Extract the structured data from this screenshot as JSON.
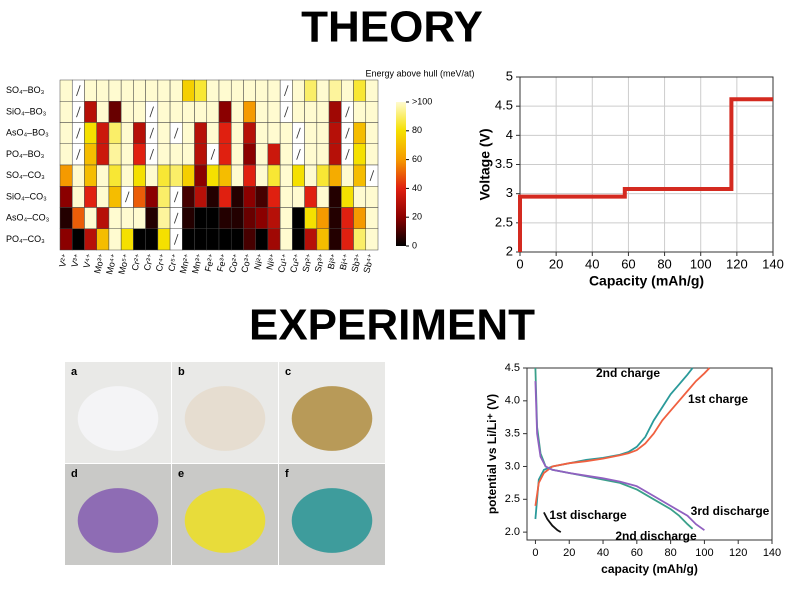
{
  "headings": {
    "theory": "THEORY",
    "experiment": "EXPERIMENT"
  },
  "chart_data": [
    {
      "type": "heatmap",
      "categories": [
        "V²⁺",
        "V³⁺",
        "V⁴⁺",
        "Mo³⁺",
        "Mo⁴⁺",
        "Mo⁵⁺",
        "Cr²⁺",
        "Cr³⁺",
        "Cr⁴⁺",
        "Cr⁵⁺",
        "Mn²⁺",
        "Mn³⁺",
        "Fe²⁺",
        "Fe³⁺",
        "Co²⁺",
        "Co³⁺",
        "Ni²⁺",
        "Ni³⁺",
        "Cu¹⁺",
        "Cu²⁺",
        "Sn²⁺",
        "Sn³⁺",
        "Bi³⁺",
        "Bi⁴⁺",
        "Sb³⁺",
        "Sb⁴⁺"
      ],
      "rows": [
        "SO₄–BO₃",
        "SiO₄–BO₃",
        "AsO₄–BO₃",
        "PO₄–BO₃",
        "SO₄–CO₃",
        "SiO₄–CO₃",
        "AsO₄–CO₃",
        "PO₄–CO₃"
      ],
      "values": [
        [
          100,
          null,
          100,
          100,
          100,
          100,
          100,
          100,
          100,
          100,
          75,
          85,
          100,
          100,
          100,
          100,
          100,
          100,
          null,
          100,
          90,
          100,
          95,
          100,
          85,
          100
        ],
        [
          100,
          null,
          30,
          100,
          15,
          100,
          100,
          null,
          100,
          100,
          100,
          100,
          100,
          20,
          100,
          60,
          100,
          100,
          null,
          100,
          100,
          100,
          25,
          null,
          100,
          100
        ],
        [
          100,
          null,
          80,
          35,
          90,
          100,
          30,
          null,
          100,
          null,
          100,
          30,
          100,
          40,
          100,
          30,
          100,
          100,
          100,
          null,
          100,
          100,
          30,
          null,
          70,
          100
        ],
        [
          100,
          null,
          70,
          35,
          95,
          100,
          40,
          null,
          100,
          100,
          100,
          30,
          null,
          40,
          100,
          20,
          100,
          35,
          100,
          null,
          100,
          100,
          30,
          null,
          80,
          100
        ],
        [
          60,
          100,
          70,
          100,
          85,
          100,
          80,
          100,
          85,
          90,
          75,
          20,
          80,
          70,
          100,
          40,
          100,
          85,
          100,
          80,
          100,
          85,
          65,
          100,
          70,
          null
        ],
        [
          20,
          100,
          40,
          100,
          70,
          null,
          50,
          20,
          90,
          null,
          10,
          30,
          5,
          40,
          5,
          20,
          10,
          40,
          100,
          100,
          40,
          100,
          5,
          80,
          100,
          100
        ],
        [
          5,
          50,
          100,
          30,
          100,
          100,
          100,
          5,
          95,
          null,
          5,
          0,
          0,
          5,
          5,
          15,
          20,
          30,
          100,
          0,
          80,
          60,
          5,
          40,
          60,
          100
        ],
        [
          20,
          0,
          30,
          70,
          100,
          80,
          0,
          0,
          80,
          null,
          0,
          0,
          0,
          0,
          0,
          10,
          0,
          25,
          100,
          0,
          30,
          70,
          5,
          40,
          90,
          100
        ]
      ],
      "colorbar": {
        "title": "Energy above hull (meV/at)",
        "lim": [
          0,
          100
        ],
        "ticks": [
          0,
          20,
          40,
          60,
          80,
          {
            "value": 100,
            "label": ">100"
          }
        ]
      }
    },
    {
      "type": "line",
      "xlabel": "Capacity (mAh/g)",
      "ylabel": "Voltage (V)",
      "xlim": [
        0,
        140
      ],
      "ylim": [
        2,
        5
      ],
      "xticks": [
        0,
        20,
        40,
        60,
        80,
        100,
        120,
        140
      ],
      "yticks": [
        2,
        2.5,
        3,
        3.5,
        4,
        4.5,
        5
      ],
      "grid": true,
      "series": [
        {
          "color": "#d42a20",
          "x": [
            0,
            0,
            58,
            58,
            117,
            117,
            140
          ],
          "y": [
            2,
            2.95,
            2.95,
            3.08,
            3.08,
            4.62,
            4.62
          ]
        }
      ]
    },
    {
      "type": "line",
      "xlabel": "capacity (mAh/g)",
      "ylabel": "potential vs Li/Li⁺ (V)",
      "xlim": [
        -5,
        140
      ],
      "ylim": [
        1.88,
        4.5
      ],
      "xticks": [
        0,
        20,
        40,
        60,
        80,
        100,
        120,
        140
      ],
      "yticks": [
        {
          "value": 2,
          "label": "2.0"
        },
        2.5,
        {
          "value": 3,
          "label": "3.0"
        },
        3.5,
        {
          "value": 4,
          "label": "4.0"
        },
        4.5
      ],
      "grid": false,
      "series": [
        {
          "name": "2nd charge",
          "color": "#2a9a9a",
          "x": [
            0,
            2,
            5,
            10,
            20,
            30,
            40,
            50,
            55,
            60,
            65,
            70,
            75,
            80,
            85,
            90,
            93
          ],
          "y": [
            2.2,
            2.8,
            2.95,
            3.0,
            3.05,
            3.1,
            3.13,
            3.18,
            3.22,
            3.3,
            3.45,
            3.7,
            3.9,
            4.1,
            4.25,
            4.4,
            4.5
          ]
        },
        {
          "name": "1st charge",
          "color": "#f06040",
          "x": [
            0,
            2,
            5,
            10,
            20,
            30,
            40,
            50,
            55,
            60,
            65,
            70,
            75,
            80,
            85,
            90,
            95,
            100,
            103
          ],
          "y": [
            2.4,
            2.75,
            2.9,
            3.0,
            3.05,
            3.08,
            3.12,
            3.17,
            3.2,
            3.25,
            3.35,
            3.5,
            3.7,
            3.85,
            4.0,
            4.15,
            4.3,
            4.42,
            4.5
          ]
        },
        {
          "name": "1st discharge",
          "color": "#111111",
          "x": [
            5,
            7,
            10,
            13,
            15
          ],
          "y": [
            2.3,
            2.2,
            2.1,
            2.03,
            2.0
          ]
        },
        {
          "name": "2nd discharge",
          "color": "#3aa08a",
          "x": [
            0,
            1,
            3,
            6,
            10,
            20,
            30,
            40,
            50,
            60,
            70,
            80,
            85,
            90,
            93
          ],
          "y": [
            4.5,
            3.6,
            3.2,
            3.0,
            2.95,
            2.9,
            2.85,
            2.8,
            2.75,
            2.65,
            2.5,
            2.35,
            2.25,
            2.12,
            2.05
          ]
        },
        {
          "name": "3rd discharge",
          "color": "#9060c0",
          "x": [
            0,
            1,
            3,
            6,
            10,
            20,
            30,
            40,
            50,
            60,
            70,
            80,
            90,
            95,
            100
          ],
          "y": [
            4.3,
            3.5,
            3.15,
            3.0,
            2.95,
            2.9,
            2.86,
            2.82,
            2.77,
            2.7,
            2.55,
            2.4,
            2.25,
            2.12,
            2.03
          ]
        }
      ]
    }
  ],
  "photos": [
    {
      "label": "a",
      "color": "#f4f4f6"
    },
    {
      "label": "b",
      "color": "#e6ddd0"
    },
    {
      "label": "c",
      "color": "#b89a58"
    },
    {
      "label": "d",
      "color": "#8e6cb4"
    },
    {
      "label": "e",
      "color": "#e8dc3a"
    },
    {
      "label": "f",
      "color": "#3e9c9c"
    }
  ]
}
